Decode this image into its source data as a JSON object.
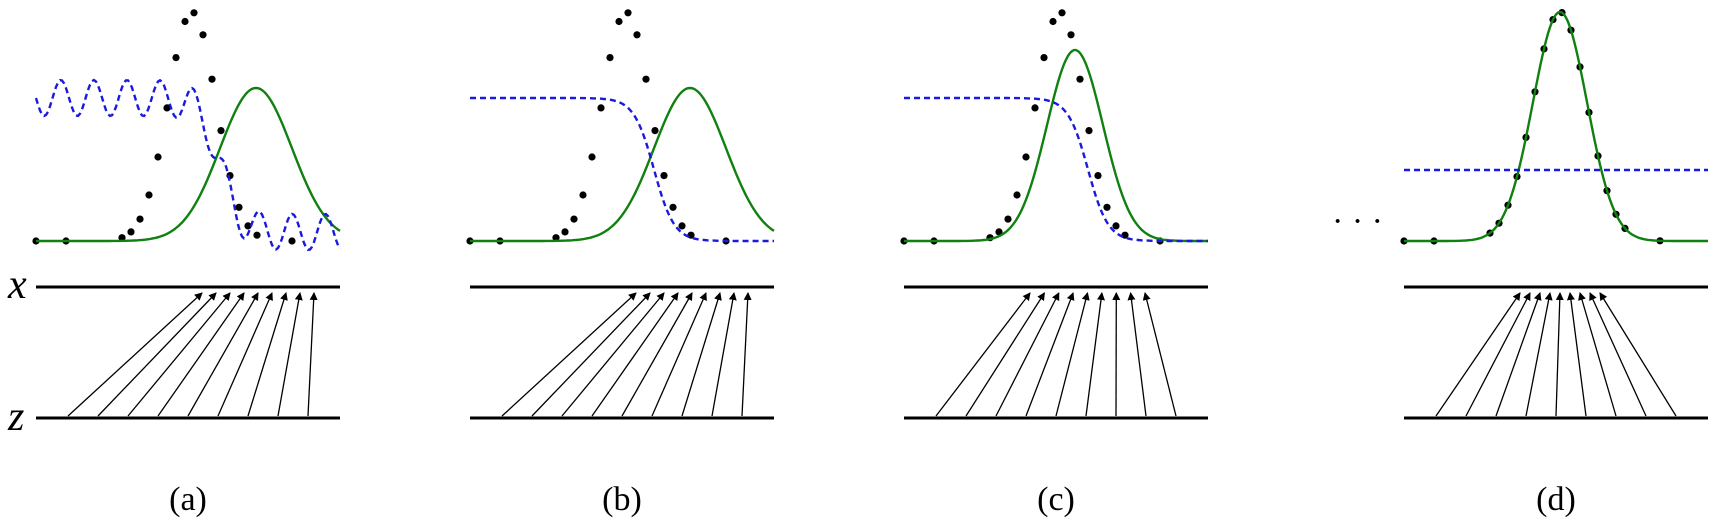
{
  "axis_labels": {
    "x": "x",
    "z": "z"
  },
  "ellipsis": "· · ·",
  "colors": {
    "data_points": "#000000",
    "model_density": "#108010",
    "discriminator": "#1a1adf",
    "arrows": "#000000",
    "axis_lines": "#000000"
  },
  "panels": [
    {
      "id": "a",
      "caption": "(a)",
      "discriminator": "oscillating",
      "model": "shifted",
      "mapping": "partially-aligned"
    },
    {
      "id": "b",
      "caption": "(b)",
      "discriminator": "smooth-sigmoid",
      "model": "shifted",
      "mapping": "partially-aligned"
    },
    {
      "id": "c",
      "caption": "(c)",
      "discriminator": "smooth-sigmoid",
      "model": "near-match",
      "mapping": "nearly-aligned"
    },
    {
      "id": "d",
      "caption": "(d)",
      "discriminator": "flat-half",
      "model": "exact-match",
      "mapping": "symmetric"
    }
  ]
}
